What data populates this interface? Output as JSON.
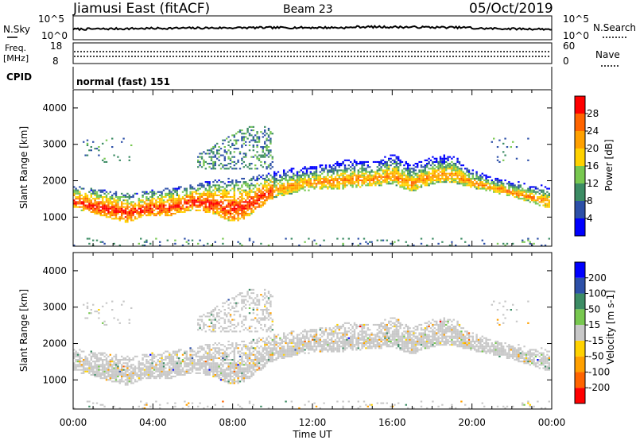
{
  "header": {
    "station": "Jiamusi East (fitACF)",
    "beam": "Beam 23",
    "date": "05/Oct/2019"
  },
  "noise_panel": {
    "left_label": "N.Sky",
    "right_label": "N.Search",
    "left_ticks": [
      "10^5",
      "10^0"
    ],
    "right_ticks": [
      "10^5",
      "10^0"
    ]
  },
  "freq_panel": {
    "left_label_1": "Freq.",
    "left_label_2": "[MHz]",
    "right_label": "Nave",
    "left_ticks": [
      "18",
      "8"
    ],
    "right_ticks": [
      "60",
      "0"
    ]
  },
  "cpid": {
    "label": "CPID",
    "value": "normal (fast) 151"
  },
  "colors": {
    "power": [
      "#0000ff",
      "#2d50a8",
      "#3c8c64",
      "#78c850",
      "#ffd200",
      "#ffa000",
      "#ff6400",
      "#ff0000"
    ],
    "velocity": [
      "#ff0000",
      "#ff6400",
      "#ffa000",
      "#ffd200",
      "#c8c8c8",
      "#78c850",
      "#3c8c64",
      "#2d50a8",
      "#0000ff"
    ]
  },
  "chart_data": [
    {
      "type": "heatmap",
      "xlabel": "Time UT",
      "ylabel": "Slant Range [km]",
      "x_ticks": [
        "00:00",
        "04:00",
        "08:00",
        "12:00",
        "16:00",
        "20:00",
        "00:00"
      ],
      "xlim_hours": [
        0,
        24
      ],
      "ylim": [
        200,
        4500
      ],
      "y_ticks": [
        1000,
        2000,
        3000,
        4000
      ],
      "colorbar": {
        "label": "Power [dB]",
        "ticks": [
          "4",
          "8",
          "12",
          "16",
          "20",
          "24",
          "28"
        ],
        "range": [
          0,
          32
        ]
      },
      "echo_band_lower_edge_km": [
        [
          0,
          1250
        ],
        [
          1,
          1100
        ],
        [
          2,
          950
        ],
        [
          2.7,
          850
        ],
        [
          3.5,
          1000
        ],
        [
          5,
          1050
        ],
        [
          6,
          1200
        ],
        [
          7,
          1100
        ],
        [
          8,
          850
        ],
        [
          8.5,
          900
        ],
        [
          9,
          1100
        ],
        [
          10,
          1500
        ],
        [
          11,
          1650
        ],
        [
          12,
          1750
        ],
        [
          13,
          1750
        ],
        [
          14,
          1800
        ],
        [
          15,
          1850
        ],
        [
          16,
          1900
        ],
        [
          17,
          1700
        ],
        [
          18,
          1900
        ],
        [
          19,
          1950
        ],
        [
          20,
          1800
        ],
        [
          21,
          1700
        ],
        [
          22,
          1550
        ],
        [
          23,
          1400
        ],
        [
          24,
          1200
        ]
      ],
      "echo_band_upper_edge_km": [
        [
          0,
          1850
        ],
        [
          1,
          1800
        ],
        [
          2,
          1750
        ],
        [
          3,
          1650
        ],
        [
          4,
          1750
        ],
        [
          5,
          1800
        ],
        [
          6,
          1900
        ],
        [
          7,
          2000
        ],
        [
          8,
          2100
        ],
        [
          9,
          2100
        ],
        [
          10,
          2250
        ],
        [
          11,
          2350
        ],
        [
          12,
          2400
        ],
        [
          13,
          2500
        ],
        [
          14,
          2600
        ],
        [
          15,
          2500
        ],
        [
          16,
          2750
        ],
        [
          17,
          2450
        ],
        [
          18,
          2650
        ],
        [
          19,
          2750
        ],
        [
          20,
          2300
        ],
        [
          21,
          2100
        ],
        [
          22,
          2000
        ],
        [
          23,
          1900
        ],
        [
          24,
          1850
        ]
      ]
    },
    {
      "type": "heatmap",
      "xlabel": "Time UT",
      "ylabel": "Slant Range [km]",
      "x_ticks": [
        "00:00",
        "04:00",
        "08:00",
        "12:00",
        "16:00",
        "20:00",
        "00:00"
      ],
      "xlim_hours": [
        0,
        24
      ],
      "ylim": [
        200,
        4500
      ],
      "y_ticks": [
        1000,
        2000,
        3000,
        4000
      ],
      "colorbar": {
        "label": "Velocity [m s-1]",
        "ticks": [
          "200",
          "100",
          "50",
          "15",
          "-15",
          "-50",
          "-100",
          "-200"
        ]
      }
    }
  ]
}
